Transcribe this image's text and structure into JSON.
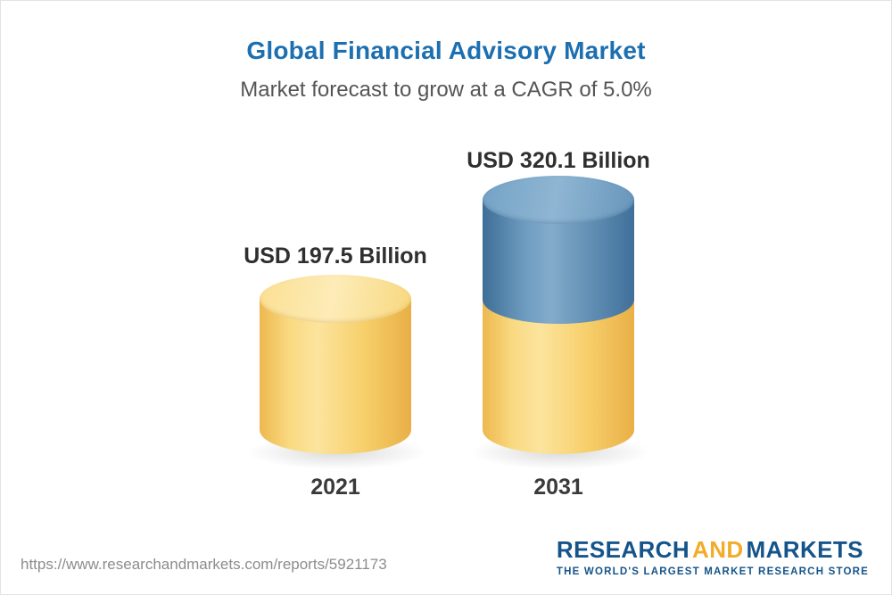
{
  "header": {
    "title": "Global Financial Advisory Market",
    "subtitle": "Market forecast to grow at a CAGR of 5.0%"
  },
  "chart_data": {
    "type": "bar",
    "bar_style": "3d-cylinder",
    "title": "Global Financial Advisory Market",
    "subtitle": "Market forecast to grow at a CAGR of 5.0%",
    "cagr_pct": 5.0,
    "unit": "USD Billion",
    "categories": [
      "2021",
      "2031"
    ],
    "values": [
      197.5,
      320.1
    ],
    "value_labels": [
      "USD 197.5 Billion",
      "USD 320.1 Billion"
    ],
    "legend": "none",
    "grid": false,
    "colors": {
      "bar_2021": "#f6cb66",
      "bar_2031_base": "#f6cb66",
      "bar_2031_growth": "#5f8db1",
      "title_text": "#1c6fb0",
      "label_text": "#2f2f2f"
    }
  },
  "footer": {
    "url": "https://www.researchandmarkets.com/reports/5921173",
    "logo": {
      "word1": "RESEARCH",
      "word2": "AND",
      "word3": "MARKETS",
      "tagline": "THE WORLD'S LARGEST MARKET RESEARCH STORE"
    }
  }
}
